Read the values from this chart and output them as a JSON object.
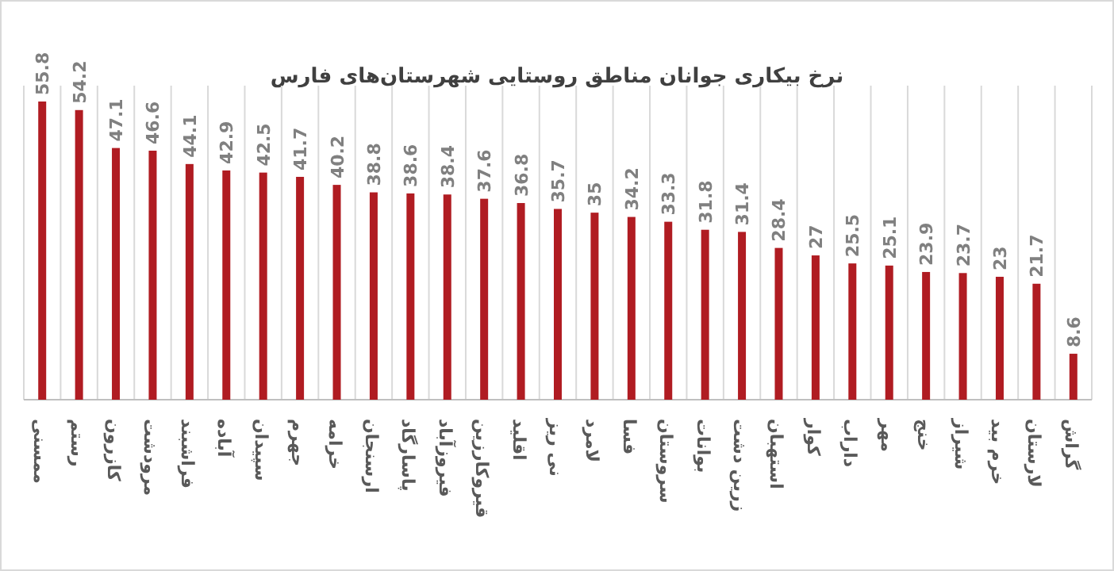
{
  "chart_data": {
    "type": "bar",
    "title": "نرخ بیکاری جوانان مناطق روستایی شهرستان‌های فارس",
    "categories": [
      "ممسنی",
      "رستم",
      "کازرون",
      "مرودشت",
      "فراشبند",
      "آباده",
      "سپیدان",
      "جهرم",
      "خرامه",
      "ارسنجان",
      "پاسارگاد",
      "فیروزآباد",
      "قیروکارزین",
      "اقلید",
      "نی ریز",
      "لامرد",
      "فسا",
      "سروستان",
      "بوانات",
      "زرین دشت",
      "استهبان",
      "کوار",
      "داراب",
      "مهر",
      "خنج",
      "شیراز",
      "خرم بید",
      "لارستان",
      "گراش"
    ],
    "values": [
      55.8,
      54.2,
      47.1,
      46.6,
      44.1,
      42.9,
      42.5,
      41.7,
      40.2,
      38.8,
      38.6,
      38.4,
      37.6,
      36.8,
      35.7,
      35,
      34.2,
      33.3,
      31.8,
      31.4,
      28.4,
      27,
      25.5,
      25.1,
      23.9,
      23.7,
      23,
      21.7,
      8.6
    ],
    "color": "#b01c22",
    "data_labels": true,
    "grid": "x",
    "tick_labels": "x"
  }
}
